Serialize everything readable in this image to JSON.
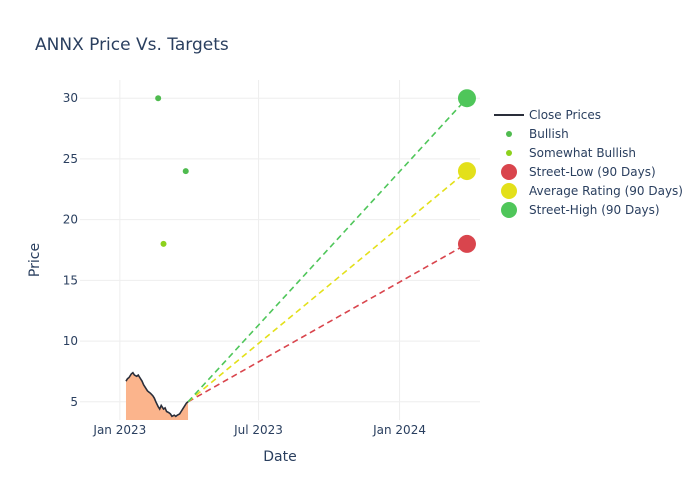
{
  "chart_data": {
    "type": "line",
    "title": "ANNX Price Vs. Targets",
    "xlabel": "Date",
    "ylabel": "Price",
    "xlim": [
      "2022-11-10",
      "2024-04-15"
    ],
    "ylim": [
      3.5,
      31.5
    ],
    "x_ticks": [
      {
        "date": "2023-01-01",
        "label": "Jan 2023"
      },
      {
        "date": "2023-07-01",
        "label": "Jul 2023"
      },
      {
        "date": "2024-01-01",
        "label": "Jan 2024"
      }
    ],
    "y_ticks": [
      5,
      10,
      15,
      20,
      25,
      30
    ],
    "grid": true,
    "legend_position": "right",
    "colors": {
      "close": "#2a2e3a",
      "fill": "#fbb48c",
      "bullish": "#4fbb4f",
      "somewhat_bullish": "#8dd11c",
      "street_low": "#d9454d",
      "average": "#e3e01a",
      "street_high": "#4fc65a"
    },
    "close_prices": {
      "name": "Close Prices",
      "points": [
        [
          "2023-01-09",
          6.7
        ],
        [
          "2023-01-11",
          6.9
        ],
        [
          "2023-01-13",
          7.0
        ],
        [
          "2023-01-16",
          7.3
        ],
        [
          "2023-01-18",
          7.4
        ],
        [
          "2023-01-20",
          7.2
        ],
        [
          "2023-01-23",
          7.1
        ],
        [
          "2023-01-25",
          7.2
        ],
        [
          "2023-01-27",
          7.0
        ],
        [
          "2023-01-30",
          6.7
        ],
        [
          "2023-02-01",
          6.4
        ],
        [
          "2023-02-03",
          6.2
        ],
        [
          "2023-02-06",
          5.9
        ],
        [
          "2023-02-08",
          5.8
        ],
        [
          "2023-02-10",
          5.7
        ],
        [
          "2023-02-13",
          5.5
        ],
        [
          "2023-02-15",
          5.3
        ],
        [
          "2023-02-17",
          5.0
        ],
        [
          "2023-02-20",
          4.6
        ],
        [
          "2023-02-22",
          4.4
        ],
        [
          "2023-02-24",
          4.7
        ],
        [
          "2023-02-27",
          4.4
        ],
        [
          "2023-03-01",
          4.5
        ],
        [
          "2023-03-03",
          4.2
        ],
        [
          "2023-03-06",
          4.1
        ],
        [
          "2023-03-08",
          4.0
        ],
        [
          "2023-03-10",
          3.8
        ],
        [
          "2023-03-13",
          3.9
        ],
        [
          "2023-03-15",
          3.8
        ],
        [
          "2023-03-17",
          3.9
        ],
        [
          "2023-03-20",
          4.0
        ],
        [
          "2023-03-22",
          4.2
        ],
        [
          "2023-03-24",
          4.4
        ],
        [
          "2023-03-27",
          4.7
        ],
        [
          "2023-03-29",
          4.9
        ],
        [
          "2023-03-31",
          5.0
        ]
      ]
    },
    "bullish": {
      "name": "Bullish",
      "points": [
        [
          "2023-02-20",
          30
        ],
        [
          "2023-03-28",
          24
        ]
      ]
    },
    "somewhat_bullish": {
      "name": "Somewhat Bullish",
      "points": [
        [
          "2023-02-27",
          18
        ]
      ]
    },
    "targets": [
      {
        "name": "Street-Low (90 Days)",
        "key": "street_low",
        "start": [
          "2023-03-31",
          5.0
        ],
        "end": [
          "2024-03-29",
          18
        ]
      },
      {
        "name": "Average Rating (90 Days)",
        "key": "average",
        "start": [
          "2023-03-31",
          5.0
        ],
        "end": [
          "2024-03-29",
          24
        ]
      },
      {
        "name": "Street-High (90 Days)",
        "key": "street_high",
        "start": [
          "2023-03-31",
          5.0
        ],
        "end": [
          "2024-03-29",
          30
        ]
      }
    ]
  }
}
